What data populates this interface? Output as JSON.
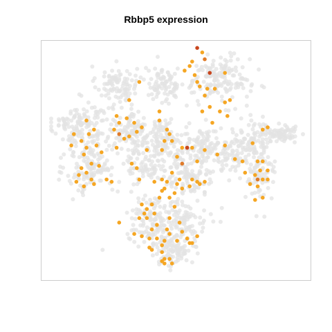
{
  "chart_data": {
    "type": "scatter",
    "title": "Rbbp5 expression",
    "xlabel": "",
    "ylabel": "",
    "xlim": [
      0,
      1
    ],
    "ylim": [
      0,
      1
    ],
    "grid": false,
    "legend": "none",
    "colors": {
      "background_cells": "#e3e3e3",
      "expressing": "#f5a623",
      "expressing_mid": "#e07b2a",
      "expressing_high": "#c8461e",
      "panel_border": "#cccccc"
    },
    "series": [
      {
        "role": "background",
        "clusters": [
          {
            "cx": 0.26,
            "cy": 0.83,
            "sx": 0.04,
            "sy": 0.04,
            "n": 90
          },
          {
            "cx": 0.12,
            "cy": 0.65,
            "sx": 0.06,
            "sy": 0.05,
            "n": 140
          },
          {
            "cx": 0.16,
            "cy": 0.46,
            "sx": 0.05,
            "sy": 0.06,
            "n": 130
          },
          {
            "cx": 0.32,
            "cy": 0.63,
            "sx": 0.05,
            "sy": 0.05,
            "n": 110
          },
          {
            "cx": 0.45,
            "cy": 0.83,
            "sx": 0.04,
            "sy": 0.04,
            "n": 90
          },
          {
            "cx": 0.45,
            "cy": 0.6,
            "sx": 0.03,
            "sy": 0.04,
            "n": 80
          },
          {
            "cx": 0.38,
            "cy": 0.48,
            "sx": 0.04,
            "sy": 0.05,
            "n": 90
          },
          {
            "cx": 0.55,
            "cy": 0.44,
            "sx": 0.05,
            "sy": 0.05,
            "n": 120
          },
          {
            "cx": 0.6,
            "cy": 0.56,
            "sx": 0.04,
            "sy": 0.04,
            "n": 80
          },
          {
            "cx": 0.67,
            "cy": 0.85,
            "sx": 0.06,
            "sy": 0.05,
            "n": 150
          },
          {
            "cx": 0.71,
            "cy": 0.52,
            "sx": 0.04,
            "sy": 0.05,
            "n": 80
          },
          {
            "cx": 0.8,
            "cy": 0.59,
            "sx": 0.04,
            "sy": 0.04,
            "n": 70
          },
          {
            "cx": 0.91,
            "cy": 0.61,
            "sx": 0.04,
            "sy": 0.02,
            "n": 80
          },
          {
            "cx": 0.83,
            "cy": 0.43,
            "sx": 0.03,
            "sy": 0.06,
            "n": 80
          },
          {
            "cx": 0.4,
            "cy": 0.24,
            "sx": 0.05,
            "sy": 0.05,
            "n": 110
          },
          {
            "cx": 0.52,
            "cy": 0.2,
            "sx": 0.05,
            "sy": 0.06,
            "n": 120
          },
          {
            "cx": 0.47,
            "cy": 0.1,
            "sx": 0.04,
            "sy": 0.04,
            "n": 80
          }
        ]
      },
      {
        "role": "expressing",
        "points": [
          [
            0.53,
            0.89
          ],
          [
            0.56,
            0.93
          ],
          [
            0.6,
            0.97
          ],
          [
            0.57,
            0.87
          ],
          [
            0.59,
            0.82
          ],
          [
            0.61,
            0.78
          ],
          [
            0.63,
            0.73
          ],
          [
            0.65,
            0.81
          ],
          [
            0.67,
            0.71
          ],
          [
            0.69,
            0.75
          ],
          [
            0.71,
            0.76
          ],
          [
            0.69,
            0.88
          ],
          [
            0.64,
            0.66
          ],
          [
            0.6,
            0.71
          ],
          [
            0.62,
            0.81
          ],
          [
            0.7,
            0.69
          ],
          [
            0.55,
            0.91
          ],
          [
            0.58,
            0.84
          ],
          [
            0.35,
            0.84
          ],
          [
            0.31,
            0.76
          ],
          [
            0.3,
            0.68
          ],
          [
            0.26,
            0.69
          ],
          [
            0.25,
            0.63
          ],
          [
            0.27,
            0.66
          ],
          [
            0.34,
            0.62
          ],
          [
            0.33,
            0.66
          ],
          [
            0.36,
            0.64
          ],
          [
            0.29,
            0.59
          ],
          [
            0.31,
            0.6
          ],
          [
            0.26,
            0.55
          ],
          [
            0.14,
            0.67
          ],
          [
            0.17,
            0.63
          ],
          [
            0.15,
            0.61
          ],
          [
            0.09,
            0.61
          ],
          [
            0.08,
            0.56
          ],
          [
            0.12,
            0.58
          ],
          [
            0.14,
            0.55
          ],
          [
            0.18,
            0.56
          ],
          [
            0.13,
            0.52
          ],
          [
            0.16,
            0.48
          ],
          [
            0.19,
            0.47
          ],
          [
            0.12,
            0.46
          ],
          [
            0.11,
            0.43
          ],
          [
            0.14,
            0.44
          ],
          [
            0.16,
            0.41
          ],
          [
            0.1,
            0.4
          ],
          [
            0.13,
            0.38
          ],
          [
            0.2,
            0.53
          ],
          [
            0.22,
            0.41
          ],
          [
            0.24,
            0.4
          ],
          [
            0.17,
            0.39
          ],
          [
            0.43,
            0.71
          ],
          [
            0.46,
            0.63
          ],
          [
            0.45,
            0.58
          ],
          [
            0.44,
            0.54
          ],
          [
            0.48,
            0.58
          ],
          [
            0.43,
            0.67
          ],
          [
            0.47,
            0.61
          ],
          [
            0.5,
            0.51
          ],
          [
            0.52,
            0.55
          ],
          [
            0.54,
            0.55
          ],
          [
            0.56,
            0.55
          ],
          [
            0.58,
            0.49
          ],
          [
            0.61,
            0.54
          ],
          [
            0.38,
            0.54
          ],
          [
            0.32,
            0.48
          ],
          [
            0.34,
            0.46
          ],
          [
            0.35,
            0.41
          ],
          [
            0.41,
            0.4
          ],
          [
            0.44,
            0.41
          ],
          [
            0.46,
            0.4
          ],
          [
            0.48,
            0.44
          ],
          [
            0.5,
            0.39
          ],
          [
            0.51,
            0.41
          ],
          [
            0.52,
            0.37
          ],
          [
            0.44,
            0.36
          ],
          [
            0.43,
            0.33
          ],
          [
            0.47,
            0.33
          ],
          [
            0.49,
            0.35
          ],
          [
            0.45,
            0.37
          ],
          [
            0.56,
            0.41
          ],
          [
            0.58,
            0.4
          ],
          [
            0.59,
            0.39
          ],
          [
            0.61,
            0.4
          ],
          [
            0.55,
            0.38
          ],
          [
            0.66,
            0.52
          ],
          [
            0.69,
            0.56
          ],
          [
            0.73,
            0.5
          ],
          [
            0.76,
            0.49
          ],
          [
            0.8,
            0.57
          ],
          [
            0.82,
            0.49
          ],
          [
            0.84,
            0.49
          ],
          [
            0.86,
            0.45
          ],
          [
            0.83,
            0.45
          ],
          [
            0.81,
            0.43
          ],
          [
            0.77,
            0.44
          ],
          [
            0.79,
            0.39
          ],
          [
            0.82,
            0.38
          ],
          [
            0.84,
            0.41
          ],
          [
            0.86,
            0.41
          ],
          [
            0.84,
            0.33
          ],
          [
            0.81,
            0.32
          ],
          [
            0.84,
            0.63
          ],
          [
            0.86,
            0.64
          ],
          [
            0.36,
            0.3
          ],
          [
            0.37,
            0.26
          ],
          [
            0.38,
            0.28
          ],
          [
            0.4,
            0.3
          ],
          [
            0.41,
            0.26
          ],
          [
            0.35,
            0.24
          ],
          [
            0.38,
            0.24
          ],
          [
            0.42,
            0.21
          ],
          [
            0.4,
            0.19
          ],
          [
            0.33,
            0.17
          ],
          [
            0.36,
            0.16
          ],
          [
            0.39,
            0.15
          ],
          [
            0.42,
            0.15
          ],
          [
            0.45,
            0.14
          ],
          [
            0.47,
            0.17
          ],
          [
            0.5,
            0.14
          ],
          [
            0.52,
            0.18
          ],
          [
            0.54,
            0.15
          ],
          [
            0.56,
            0.13
          ],
          [
            0.58,
            0.16
          ],
          [
            0.44,
            0.12
          ],
          [
            0.39,
            0.11
          ],
          [
            0.4,
            0.1
          ],
          [
            0.44,
            0.09
          ],
          [
            0.45,
            0.06
          ],
          [
            0.47,
            0.06
          ],
          [
            0.48,
            0.04
          ],
          [
            0.45,
            0.04
          ],
          [
            0.44,
            0.05
          ],
          [
            0.27,
            0.22
          ],
          [
            0.46,
            0.19
          ],
          [
            0.51,
            0.22
          ],
          [
            0.47,
            0.24
          ],
          [
            0.55,
            0.13
          ],
          [
            0.49,
            0.29
          ]
        ]
      },
      {
        "role": "expressing_mid",
        "points": [
          [
            0.27,
            0.61
          ],
          [
            0.52,
            0.48
          ],
          [
            0.61,
            0.94
          ],
          [
            0.82,
            0.41
          ]
        ]
      },
      {
        "role": "expressing_high",
        "points": [
          [
            0.58,
            0.99
          ],
          [
            0.63,
            0.88
          ],
          [
            0.54,
            0.55
          ]
        ]
      }
    ]
  }
}
